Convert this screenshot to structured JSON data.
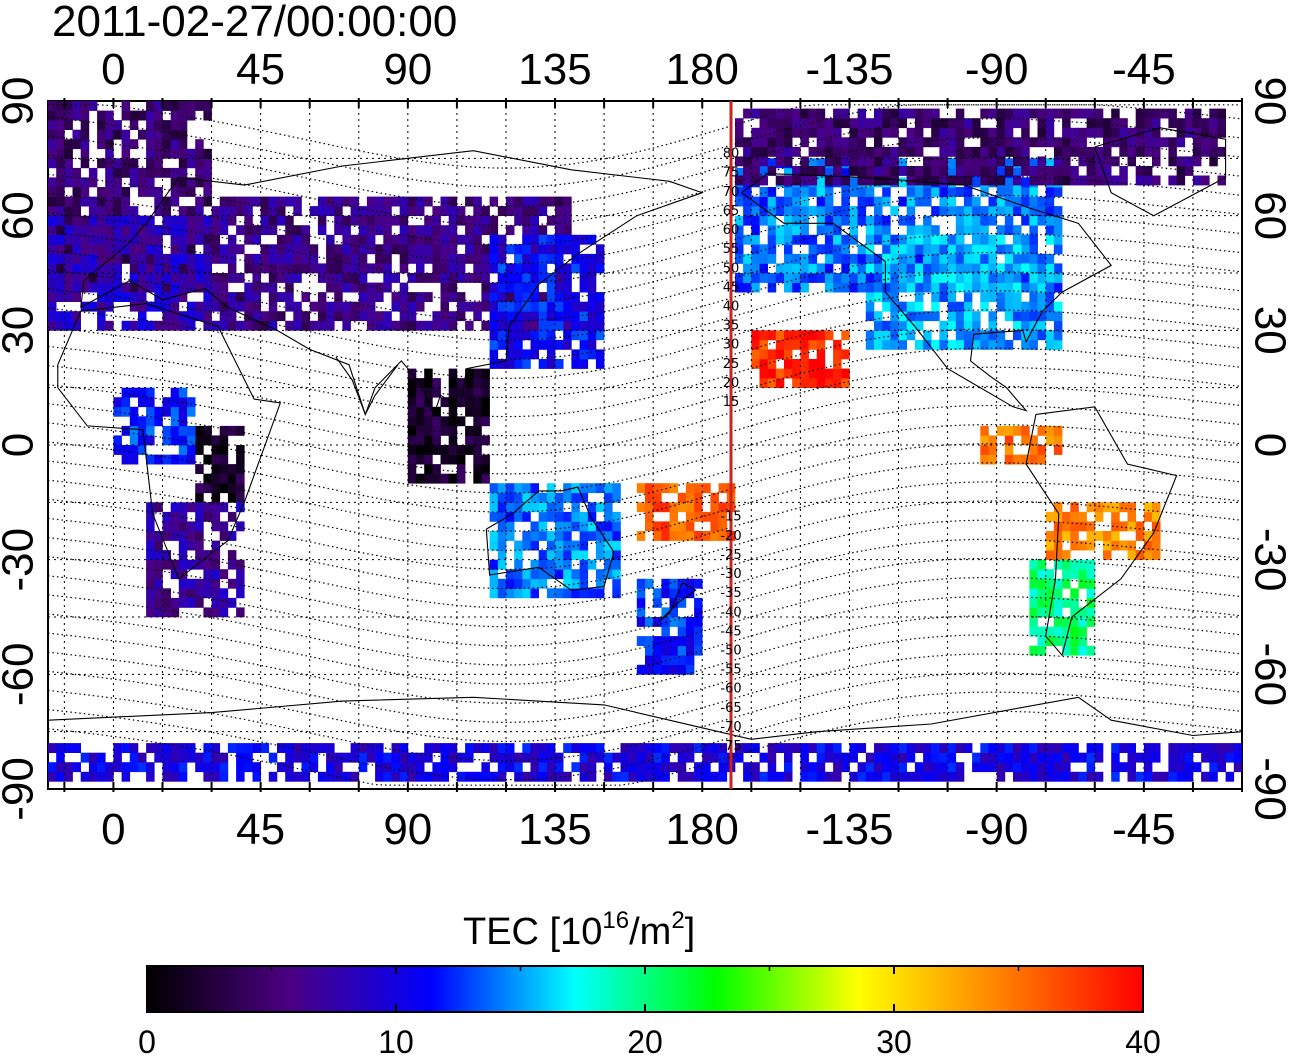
{
  "title": "2011-02-27/00:00:00",
  "map": {
    "top_lon_labels": [
      "0",
      "45",
      "90",
      "135",
      "180",
      "-135",
      "-90",
      "-45"
    ],
    "bottom_lon_labels": [
      "0",
      "45",
      "90",
      "135",
      "180",
      "-135",
      "-90",
      "-45"
    ],
    "left_lat_labels": [
      "90",
      "60",
      "30",
      "0",
      "-30",
      "-60",
      "-90"
    ],
    "right_lat_labels": [
      "90",
      "60",
      "30",
      "0",
      "-30",
      "-60",
      "-90"
    ],
    "meridian_line_color": "#cc2222",
    "magnetic_latitude_labels": [
      "80",
      "75",
      "70",
      "65",
      "60",
      "55",
      "50",
      "45",
      "40",
      "35",
      "30",
      "25",
      "20",
      "15",
      "-15",
      "-20",
      "-25",
      "-30",
      "-35",
      "-40",
      "-45",
      "-50",
      "-55",
      "-60",
      "-65",
      "-70",
      "-75"
    ]
  },
  "colorbar": {
    "title_main": "TEC  [10",
    "title_sup1": "16",
    "title_mid": "/m",
    "title_sup2": "2",
    "title_end": "]",
    "tick_labels": [
      "0",
      "10",
      "20",
      "30",
      "40"
    ],
    "colors": [
      "#000000",
      "#4b0082",
      "#0000ff",
      "#00ffff",
      "#00ff00",
      "#ffff00",
      "#ff8000",
      "#ff0000"
    ]
  },
  "chart_data": {
    "type": "heatmap",
    "title": "2011-02-27/00:00:00",
    "xlim": [
      -20,
      345
    ],
    "ylim": [
      -90,
      90
    ],
    "value_range": [
      0,
      40
    ],
    "units": "10^16/m^2",
    "value_label": "TEC",
    "regions": [
      {
        "lon": [
          -20,
          30
        ],
        "lat": [
          40,
          88
        ],
        "tec": 5
      },
      {
        "lon": [
          -20,
          30
        ],
        "lat": [
          30,
          60
        ],
        "tec": 8
      },
      {
        "lon": [
          30,
          140
        ],
        "lat": [
          30,
          65
        ],
        "tec": 6
      },
      {
        "lon": [
          115,
          150
        ],
        "lat": [
          20,
          55
        ],
        "tec": 11
      },
      {
        "lon": [
          90,
          115
        ],
        "lat": [
          -10,
          20
        ],
        "tec": 2
      },
      {
        "lon": [
          25,
          40
        ],
        "lat": [
          -15,
          5
        ],
        "tec": 2
      },
      {
        "lon": [
          0,
          25
        ],
        "lat": [
          -5,
          15
        ],
        "tec": 12
      },
      {
        "lon": [
          10,
          40
        ],
        "lat": [
          -45,
          -15
        ],
        "tec": 7
      },
      {
        "lon": [
          115,
          155
        ],
        "lat": [
          -40,
          -10
        ],
        "tec": 14
      },
      {
        "lon": [
          160,
          190
        ],
        "lat": [
          -25,
          -10
        ],
        "tec": 36
      },
      {
        "lon": [
          160,
          180
        ],
        "lat": [
          -60,
          -35
        ],
        "tec": 12
      },
      {
        "lon": [
          195,
          225
        ],
        "lat": [
          15,
          30
        ],
        "tec": 38
      },
      {
        "lon": [
          190,
          290
        ],
        "lat": [
          40,
          75
        ],
        "tec": 14
      },
      {
        "lon": [
          230,
          290
        ],
        "lat": [
          25,
          55
        ],
        "tec": 15
      },
      {
        "lon": [
          265,
          290
        ],
        "lat": [
          -5,
          5
        ],
        "tec": 35
      },
      {
        "lon": [
          285,
          320
        ],
        "lat": [
          -30,
          -15
        ],
        "tec": 34
      },
      {
        "lon": [
          280,
          300
        ],
        "lat": [
          -55,
          -30
        ],
        "tec": 20
      },
      {
        "lon": [
          190,
          340
        ],
        "lat": [
          68,
          88
        ],
        "tec": 5
      },
      {
        "lon": [
          -20,
          345
        ],
        "lat": [
          -88,
          -78
        ],
        "tec": 10
      }
    ]
  }
}
